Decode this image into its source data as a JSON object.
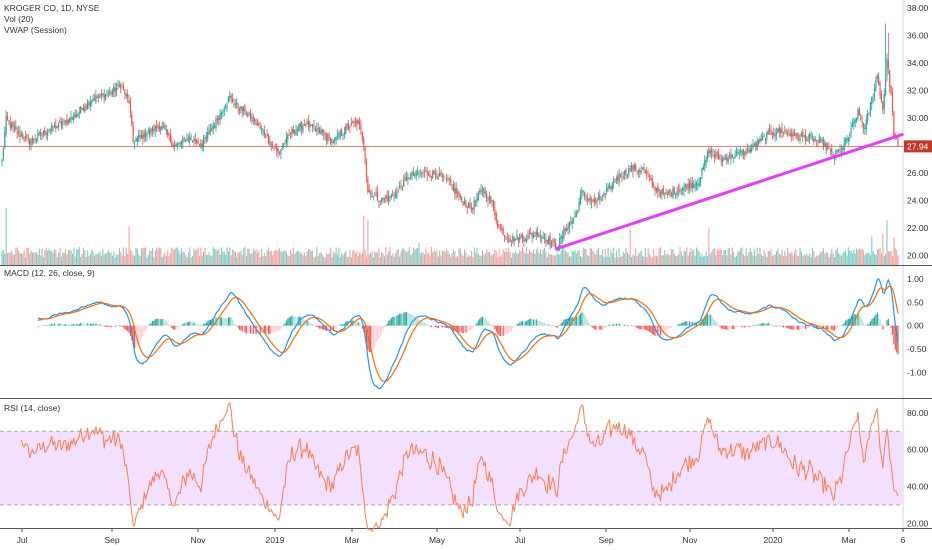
{
  "legend": {
    "title": "KROGER CO, 1D, NYSE",
    "vol": "Vol (20)",
    "vwap": "VWAP (Session)",
    "macd": "MACD (12, 26, close, 9)",
    "rsi": "RSI (14, close)"
  },
  "colors": {
    "up": "#26a69a",
    "down": "#ef5350",
    "trend": "#e040fb",
    "macd_line": "#2196f3",
    "signal_line": "#ff6d00",
    "rsi_line": "#ff7f50",
    "rsi_band": "#f3e0ff",
    "price_line": "#c0392b"
  },
  "chart_data": [
    {
      "type": "candlestick",
      "name": "price",
      "y_ticks": [
        "20.00",
        "22.00",
        "24.00",
        "26.00",
        "28.00",
        "30.00",
        "32.00",
        "34.00",
        "36.00",
        "38.00"
      ],
      "ylim": [
        19.3,
        38.6
      ],
      "last_price": "27.94",
      "x_labels": [
        "Jul",
        "Sep",
        "Nov",
        "2019",
        "Mar",
        "May",
        "Jul",
        "Sep",
        "Nov",
        "2020",
        "Mar",
        "6"
      ],
      "waypoints_close": [
        [
          0,
          26.9
        ],
        [
          3,
          29.9
        ],
        [
          10,
          29.0
        ],
        [
          20,
          28.3
        ],
        [
          35,
          29.2
        ],
        [
          45,
          29.6
        ],
        [
          55,
          30.4
        ],
        [
          65,
          31.4
        ],
        [
          78,
          31.8
        ],
        [
          86,
          32.4
        ],
        [
          92,
          31.2
        ],
        [
          95,
          28.3
        ],
        [
          105,
          28.9
        ],
        [
          115,
          29.5
        ],
        [
          125,
          27.9
        ],
        [
          135,
          28.6
        ],
        [
          145,
          28.1
        ],
        [
          155,
          29.8
        ],
        [
          165,
          31.5
        ],
        [
          170,
          30.9
        ],
        [
          180,
          30.1
        ],
        [
          190,
          28.9
        ],
        [
          200,
          27.4
        ],
        [
          210,
          29.0
        ],
        [
          220,
          29.6
        ],
        [
          230,
          29.0
        ],
        [
          240,
          28.3
        ],
        [
          250,
          29.3
        ],
        [
          258,
          29.7
        ],
        [
          262,
          28.2
        ],
        [
          265,
          24.7
        ],
        [
          275,
          24.0
        ],
        [
          285,
          24.5
        ],
        [
          295,
          25.8
        ],
        [
          305,
          26.0
        ],
        [
          315,
          25.9
        ],
        [
          325,
          25.2
        ],
        [
          332,
          24.1
        ],
        [
          340,
          23.4
        ],
        [
          348,
          24.8
        ],
        [
          355,
          23.8
        ],
        [
          360,
          22.0
        ],
        [
          368,
          21.2
        ],
        [
          378,
          21.3
        ],
        [
          388,
          21.6
        ],
        [
          396,
          21.1
        ],
        [
          402,
          20.6
        ],
        [
          408,
          21.9
        ],
        [
          415,
          22.8
        ],
        [
          420,
          24.6
        ],
        [
          428,
          23.8
        ],
        [
          435,
          24.2
        ],
        [
          445,
          25.6
        ],
        [
          455,
          26.3
        ],
        [
          465,
          26.2
        ],
        [
          472,
          25.0
        ],
        [
          480,
          24.4
        ],
        [
          490,
          24.8
        ],
        [
          498,
          25.1
        ],
        [
          505,
          25.5
        ],
        [
          512,
          27.6
        ],
        [
          520,
          27.0
        ],
        [
          530,
          27.3
        ],
        [
          540,
          27.6
        ],
        [
          548,
          28.2
        ],
        [
          556,
          28.9
        ],
        [
          565,
          29.1
        ],
        [
          575,
          28.7
        ],
        [
          585,
          28.6
        ],
        [
          595,
          28.1
        ],
        [
          602,
          27.3
        ],
        [
          608,
          27.7
        ],
        [
          614,
          28.8
        ],
        [
          620,
          30.4
        ],
        [
          625,
          29.2
        ],
        [
          630,
          31.4
        ],
        [
          634,
          33.1
        ],
        [
          638,
          30.6
        ],
        [
          641,
          34.3
        ],
        [
          644,
          31.6
        ],
        [
          646,
          28.9
        ],
        [
          649,
          27.9
        ]
      ],
      "trendline": [
        [
          402,
          20.5
        ],
        [
          652,
          28.8
        ]
      ]
    },
    {
      "type": "bar",
      "name": "volume",
      "spikes": [
        [
          3,
          3.8
        ],
        [
          92,
          2.6
        ],
        [
          262,
          3.3
        ],
        [
          265,
          3.0
        ],
        [
          302,
          1.5
        ],
        [
          455,
          2.4
        ],
        [
          512,
          2.5
        ],
        [
          630,
          1.9
        ],
        [
          638,
          2.1
        ],
        [
          641,
          3.0
        ],
        [
          646,
          1.8
        ]
      ]
    },
    {
      "type": "line",
      "name": "macd",
      "series": [
        {
          "name": "MACD"
        },
        {
          "name": "Signal"
        }
      ],
      "y_ticks": [
        "1.00",
        "0.50",
        "0.00",
        "-0.50",
        "-1.00"
      ],
      "ylim": [
        -1.55,
        1.3
      ]
    },
    {
      "type": "line",
      "name": "rsi",
      "series": [
        {
          "name": "RSI"
        }
      ],
      "y_ticks": [
        "80.00",
        "60.00",
        "40.00",
        "20.00"
      ],
      "ylim": [
        17.5,
        88
      ],
      "band": [
        30,
        70
      ]
    }
  ]
}
